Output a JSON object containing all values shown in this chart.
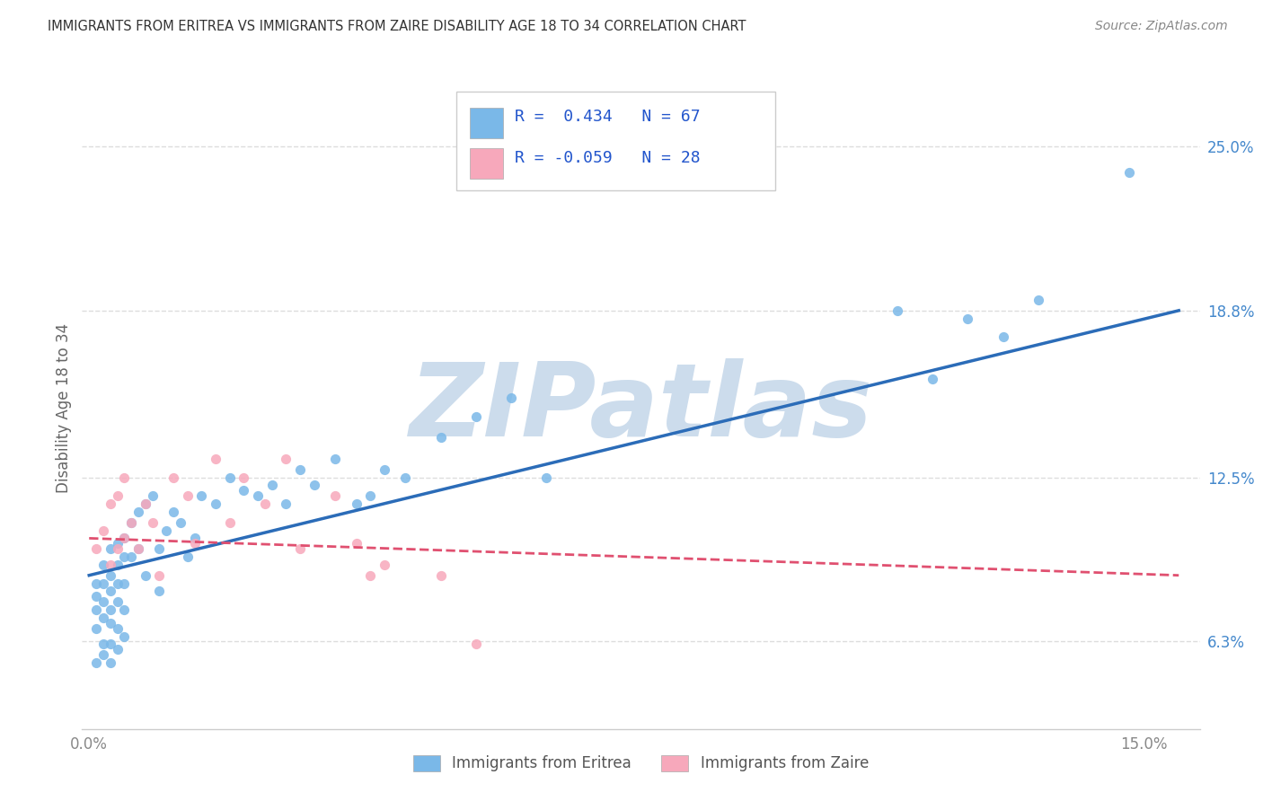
{
  "title": "IMMIGRANTS FROM ERITREA VS IMMIGRANTS FROM ZAIRE DISABILITY AGE 18 TO 34 CORRELATION CHART",
  "source": "Source: ZipAtlas.com",
  "ylabel": "Disability Age 18 to 34",
  "y_tick_labels_right": [
    "6.3%",
    "12.5%",
    "18.8%",
    "25.0%"
  ],
  "y_tick_values_right": [
    0.063,
    0.125,
    0.188,
    0.25
  ],
  "xlim": [
    -0.001,
    0.158
  ],
  "ylim": [
    0.03,
    0.272
  ],
  "legend_label1": "Immigrants from Eritrea",
  "legend_label2": "Immigrants from Zaire",
  "color_eritrea": "#7ab8e8",
  "color_zaire": "#f7a8bb",
  "color_line_eritrea": "#2b6cb8",
  "color_line_zaire": "#e05070",
  "watermark": "ZIPatlas",
  "watermark_color": "#ccdcec",
  "legend_text_color": "#2255cc",
  "title_color": "#333333",
  "source_color": "#888888",
  "axis_label_color": "#666666",
  "tick_color_right": "#4488cc",
  "tick_color_bottom": "#888888",
  "grid_color": "#dddddd",
  "eritrea_x": [
    0.001,
    0.001,
    0.001,
    0.001,
    0.001,
    0.002,
    0.002,
    0.002,
    0.002,
    0.002,
    0.002,
    0.003,
    0.003,
    0.003,
    0.003,
    0.003,
    0.003,
    0.003,
    0.004,
    0.004,
    0.004,
    0.004,
    0.004,
    0.004,
    0.005,
    0.005,
    0.005,
    0.005,
    0.005,
    0.006,
    0.006,
    0.007,
    0.007,
    0.008,
    0.008,
    0.009,
    0.01,
    0.01,
    0.011,
    0.012,
    0.013,
    0.014,
    0.015,
    0.016,
    0.018,
    0.02,
    0.022,
    0.024,
    0.026,
    0.028,
    0.03,
    0.032,
    0.035,
    0.038,
    0.04,
    0.042,
    0.045,
    0.05,
    0.055,
    0.06,
    0.065,
    0.115,
    0.12,
    0.125,
    0.13,
    0.135,
    0.148
  ],
  "eritrea_y": [
    0.075,
    0.08,
    0.085,
    0.068,
    0.055,
    0.092,
    0.078,
    0.072,
    0.085,
    0.062,
    0.058,
    0.098,
    0.088,
    0.082,
    0.075,
    0.07,
    0.062,
    0.055,
    0.1,
    0.092,
    0.085,
    0.078,
    0.068,
    0.06,
    0.102,
    0.095,
    0.085,
    0.075,
    0.065,
    0.108,
    0.095,
    0.112,
    0.098,
    0.115,
    0.088,
    0.118,
    0.098,
    0.082,
    0.105,
    0.112,
    0.108,
    0.095,
    0.102,
    0.118,
    0.115,
    0.125,
    0.12,
    0.118,
    0.122,
    0.115,
    0.128,
    0.122,
    0.132,
    0.115,
    0.118,
    0.128,
    0.125,
    0.14,
    0.148,
    0.155,
    0.125,
    0.188,
    0.162,
    0.185,
    0.178,
    0.192,
    0.24
  ],
  "zaire_x": [
    0.001,
    0.002,
    0.003,
    0.003,
    0.004,
    0.004,
    0.005,
    0.005,
    0.006,
    0.007,
    0.008,
    0.009,
    0.01,
    0.012,
    0.014,
    0.015,
    0.018,
    0.02,
    0.022,
    0.025,
    0.028,
    0.03,
    0.035,
    0.038,
    0.04,
    0.042,
    0.05,
    0.055
  ],
  "zaire_y": [
    0.098,
    0.105,
    0.092,
    0.115,
    0.098,
    0.118,
    0.102,
    0.125,
    0.108,
    0.098,
    0.115,
    0.108,
    0.088,
    0.125,
    0.118,
    0.1,
    0.132,
    0.108,
    0.125,
    0.115,
    0.132,
    0.098,
    0.118,
    0.1,
    0.088,
    0.092,
    0.088,
    0.062
  ],
  "eritrea_line_x0": 0.0,
  "eritrea_line_y0": 0.088,
  "eritrea_line_x1": 0.155,
  "eritrea_line_y1": 0.188,
  "zaire_line_x0": 0.0,
  "zaire_line_y0": 0.102,
  "zaire_line_x1": 0.155,
  "zaire_line_y1": 0.088
}
